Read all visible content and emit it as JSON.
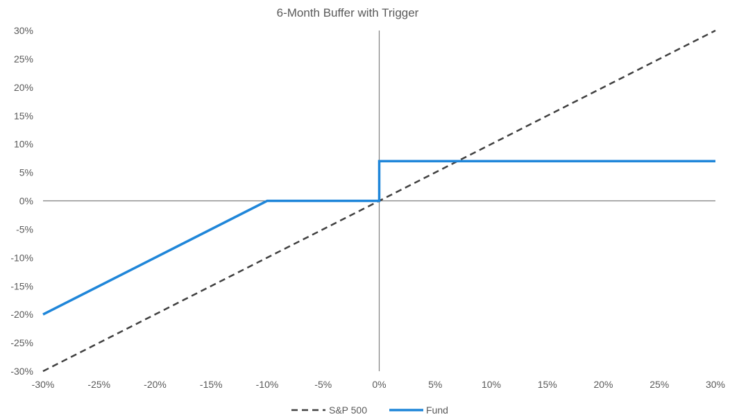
{
  "chart_data": {
    "type": "line",
    "title": "6-Month Buffer with Trigger",
    "xlabel": "",
    "ylabel": "",
    "xlim": [
      -30,
      30
    ],
    "ylim": [
      -30,
      30
    ],
    "x_ticks": [
      -30,
      -25,
      -20,
      -15,
      -10,
      -5,
      0,
      5,
      10,
      15,
      20,
      25,
      30
    ],
    "y_ticks": [
      30,
      25,
      20,
      15,
      10,
      5,
      0,
      -5,
      -10,
      -15,
      -20,
      -25,
      -30
    ],
    "x_tick_labels": [
      "-30%",
      "-25%",
      "-20%",
      "-15%",
      "-10%",
      "-5%",
      "0%",
      "5%",
      "10%",
      "15%",
      "20%",
      "25%",
      "30%"
    ],
    "y_tick_labels": [
      "30%",
      "25%",
      "20%",
      "15%",
      "10%",
      "5%",
      "0%",
      "-5%",
      "-10%",
      "-15%",
      "-20%",
      "-25%",
      "-30%"
    ],
    "grid": false,
    "legend_position": "bottom",
    "series": [
      {
        "name": "S&P 500",
        "style": "dashed",
        "color": "#404040",
        "points": [
          [
            -30,
            -30
          ],
          [
            30,
            30
          ]
        ]
      },
      {
        "name": "Fund",
        "style": "solid",
        "color": "#1f86d9",
        "points": [
          [
            -30,
            -20
          ],
          [
            -10,
            0
          ],
          [
            0,
            0
          ],
          [
            0,
            7
          ],
          [
            30,
            7
          ]
        ]
      }
    ]
  }
}
